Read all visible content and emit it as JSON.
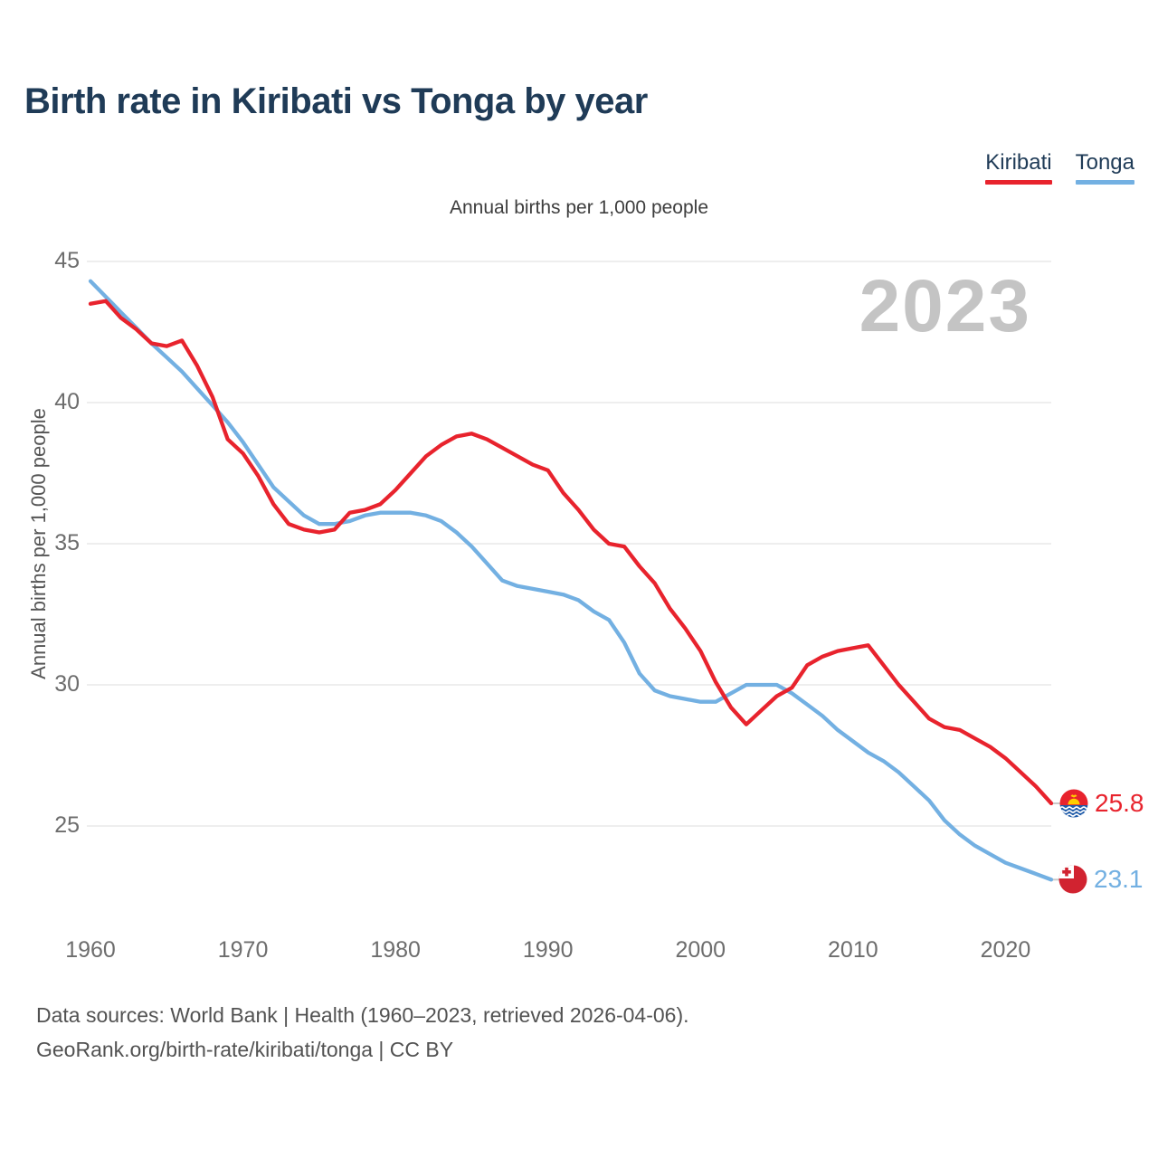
{
  "header": {
    "title": "Birth rate in Kiribati vs Tonga by year"
  },
  "legend": [
    {
      "label": "Kiribati",
      "color": "#e8232d"
    },
    {
      "label": "Tonga",
      "color": "#73b0e2"
    }
  ],
  "subtitle": "Annual births per 1,000 people",
  "watermark": "2023",
  "end_labels": {
    "kiribati": "25.8",
    "tonga": "23.1"
  },
  "footer": {
    "line1": "Data sources: World Bank | Health (1960–2023, retrieved 2026-04-06).",
    "line2": "GeoRank.org/birth-rate/kiribati/tonga | CC BY"
  },
  "chart_data": {
    "type": "line",
    "title": "Birth rate in Kiribati vs Tonga by year",
    "ylabel": "Annual births per 1,000 people",
    "xlabel": "",
    "grid": "horizontal",
    "legend_position": "top-right",
    "ylim": [
      23,
      45
    ],
    "yticks": [
      45,
      40,
      35,
      30,
      25
    ],
    "xticks": [
      1960,
      1970,
      1980,
      1990,
      2000,
      2010,
      2020
    ],
    "x": [
      1960,
      1961,
      1962,
      1963,
      1964,
      1965,
      1966,
      1967,
      1968,
      1969,
      1970,
      1971,
      1972,
      1973,
      1974,
      1975,
      1976,
      1977,
      1978,
      1979,
      1980,
      1981,
      1982,
      1983,
      1984,
      1985,
      1986,
      1987,
      1988,
      1989,
      1990,
      1991,
      1992,
      1993,
      1994,
      1995,
      1996,
      1997,
      1998,
      1999,
      2000,
      2001,
      2002,
      2003,
      2004,
      2005,
      2006,
      2007,
      2008,
      2009,
      2010,
      2011,
      2012,
      2013,
      2014,
      2015,
      2016,
      2017,
      2018,
      2019,
      2020,
      2021,
      2022,
      2023
    ],
    "series": [
      {
        "name": "Kiribati",
        "color": "#e8232d",
        "final_value": 25.8,
        "values": [
          43.5,
          43.6,
          43.0,
          42.6,
          42.1,
          42.0,
          42.2,
          41.3,
          40.2,
          38.7,
          38.2,
          37.4,
          36.4,
          35.7,
          35.5,
          35.4,
          35.5,
          36.1,
          36.2,
          36.4,
          36.9,
          37.5,
          38.1,
          38.5,
          38.8,
          38.9,
          38.7,
          38.4,
          38.1,
          37.8,
          37.6,
          36.8,
          36.2,
          35.5,
          35.0,
          34.9,
          34.2,
          33.6,
          32.7,
          32.0,
          31.2,
          30.1,
          29.2,
          28.6,
          29.1,
          29.6,
          29.9,
          30.7,
          31.0,
          31.2,
          31.3,
          31.4,
          30.7,
          30.0,
          29.4,
          28.8,
          28.5,
          28.4,
          28.1,
          27.8,
          27.4,
          26.9,
          26.4,
          25.8
        ]
      },
      {
        "name": "Tonga",
        "color": "#73b0e2",
        "final_value": 23.1,
        "values": [
          44.3,
          43.75,
          43.2,
          42.65,
          42.1,
          41.6,
          41.1,
          40.5,
          39.9,
          39.3,
          38.6,
          37.8,
          37.0,
          36.5,
          36.0,
          35.7,
          35.7,
          35.8,
          36.0,
          36.1,
          36.1,
          36.1,
          36.0,
          35.8,
          35.4,
          34.9,
          34.3,
          33.7,
          33.5,
          33.4,
          33.3,
          33.2,
          33.0,
          32.6,
          32.3,
          31.5,
          30.4,
          29.8,
          29.6,
          29.5,
          29.4,
          29.4,
          29.7,
          30.0,
          30.0,
          30.0,
          29.7,
          29.3,
          28.9,
          28.4,
          28.0,
          27.6,
          27.3,
          26.9,
          26.4,
          25.9,
          25.2,
          24.7,
          24.3,
          24.0,
          23.7,
          23.5,
          23.3,
          23.1
        ]
      }
    ]
  }
}
